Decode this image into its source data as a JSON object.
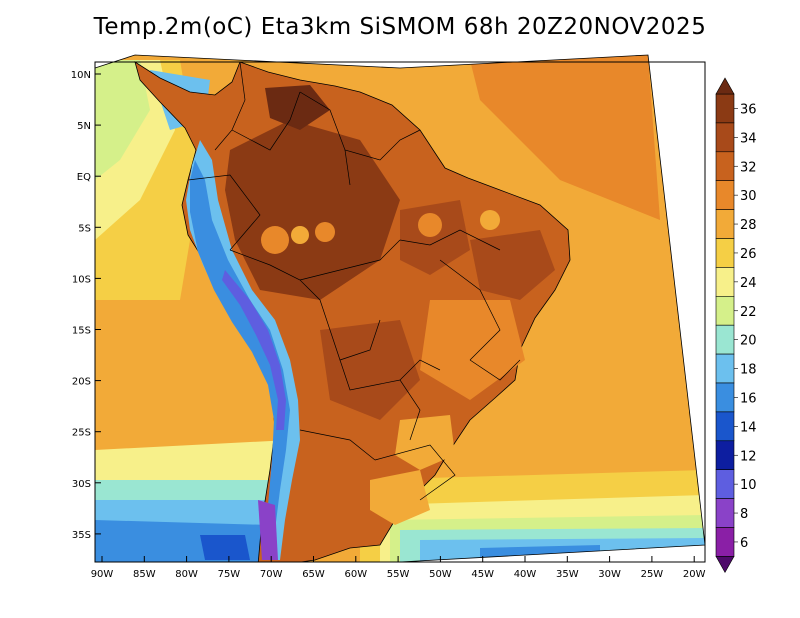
{
  "title": "Temp.2m(oC) Eta3km SiSMOM 68h 20Z20NOV2025",
  "axes": {
    "lat_labels": [
      "10N",
      "5N",
      "EQ",
      "5S",
      "10S",
      "15S",
      "20S",
      "25S",
      "30S",
      "35S"
    ],
    "lon_labels": [
      "90W",
      "85W",
      "80W",
      "75W",
      "70W",
      "65W",
      "60W",
      "55W",
      "50W",
      "45W",
      "40W",
      "35W",
      "30W",
      "25W",
      "20W"
    ]
  },
  "colorbar": {
    "labels": [
      "36",
      "34",
      "32",
      "30",
      "28",
      "26",
      "24",
      "22",
      "20",
      "18",
      "16",
      "14",
      "12",
      "10",
      "8",
      "6"
    ],
    "colors": [
      "#6b2a12",
      "#8b3a14",
      "#a84a1a",
      "#c8621e",
      "#e8882a",
      "#f2aa38",
      "#f5cf45",
      "#f7f08a",
      "#d5f08a",
      "#9ae6d2",
      "#6cc0ee",
      "#3a8ee0",
      "#1a56cc",
      "#0d1ea0",
      "#5e5ee0",
      "#8a42c8",
      "#8a1fa6",
      "#4e0a6a"
    ],
    "max_arrow_color": "#6b2a12",
    "min_arrow_color": "#4e0a6a"
  },
  "colors": {
    "ocean_base": "#f2aa38",
    "land_base": "#c8621e",
    "andes": "#5e5ee0"
  }
}
